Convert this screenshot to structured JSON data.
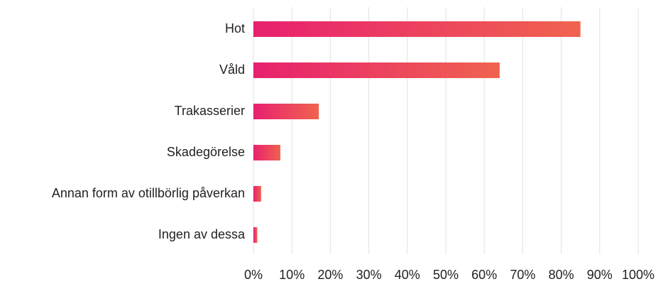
{
  "chart_data": {
    "type": "barh",
    "categories": [
      "Hot",
      "Våld",
      "Trakasserier",
      "Skadegörelse",
      "Annan form av otillbörlig påverkan",
      "Ingen av dessa"
    ],
    "values": [
      85,
      64,
      17,
      7,
      2,
      1
    ],
    "gradient": [
      "#e8206f",
      "#f0634f"
    ],
    "xlim": [
      0,
      100
    ],
    "xticks": [
      {
        "value": 0,
        "label": "0%"
      },
      {
        "value": 10,
        "label": "10%"
      },
      {
        "value": 20,
        "label": "20%"
      },
      {
        "value": 30,
        "label": "30%"
      },
      {
        "value": 40,
        "label": "40%"
      },
      {
        "value": 50,
        "label": "50%"
      },
      {
        "value": 60,
        "label": "60%"
      },
      {
        "value": 70,
        "label": "70%"
      },
      {
        "value": 80,
        "label": "80%"
      },
      {
        "value": 90,
        "label": "90%"
      },
      {
        "value": 100,
        "label": "100%"
      }
    ],
    "grid": true
  }
}
